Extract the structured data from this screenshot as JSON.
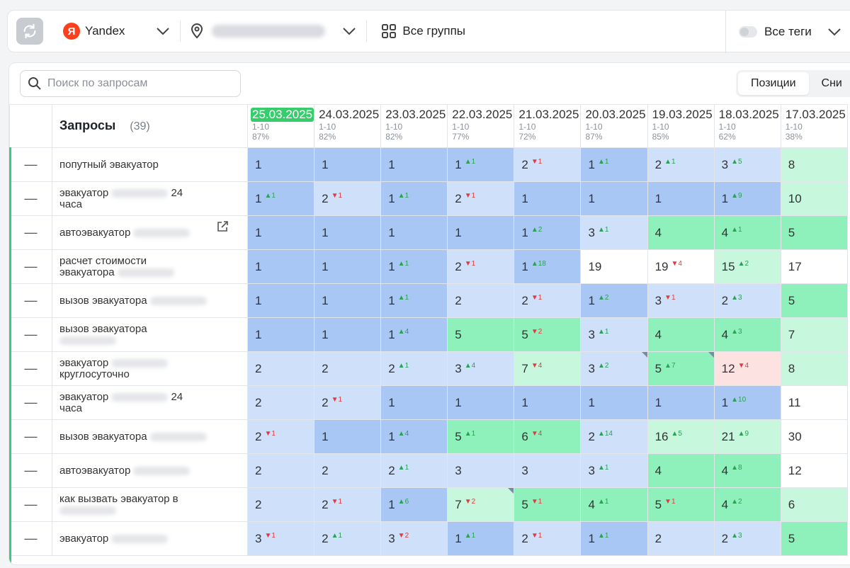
{
  "toolbar": {
    "engine_label": "Yandex",
    "engine_logo_letter": "Я",
    "groups_label": "Все группы",
    "tags_label": "Все теги"
  },
  "search": {
    "placeholder": "Поиск по запросам"
  },
  "view_tabs": [
    {
      "label": "Позиции",
      "active": true
    },
    {
      "label": "Сни"
    }
  ],
  "table": {
    "header_label": "Запросы",
    "header_count": "(39)",
    "dates": [
      {
        "date": "25.03.2025",
        "range": "1-10",
        "pct": "87%",
        "active": true
      },
      {
        "date": "24.03.2025",
        "range": "1-10",
        "pct": "82%"
      },
      {
        "date": "23.03.2025",
        "range": "1-10",
        "pct": "82%"
      },
      {
        "date": "22.03.2025",
        "range": "1-10",
        "pct": "77%"
      },
      {
        "date": "21.03.2025",
        "range": "1-10",
        "pct": "72%"
      },
      {
        "date": "20.03.2025",
        "range": "1-10",
        "pct": "87%"
      },
      {
        "date": "19.03.2025",
        "range": "1-10",
        "pct": "85%"
      },
      {
        "date": "18.03.2025",
        "range": "1-10",
        "pct": "62%"
      },
      {
        "date": "17.03.2025",
        "range": "1-10",
        "pct": "38%"
      }
    ],
    "rows": [
      {
        "dash": "—",
        "q1": "попутный эвакуатор",
        "blur1": false,
        "q2": "",
        "blur2": false,
        "cells": [
          {
            "v": "1",
            "bg": "blue"
          },
          {
            "v": "1",
            "bg": "blue"
          },
          {
            "v": "1",
            "bg": "blue"
          },
          {
            "v": "1",
            "d": "+1",
            "bg": "blue"
          },
          {
            "v": "2",
            "d": "-1",
            "bg": "lblue"
          },
          {
            "v": "1",
            "d": "+1",
            "bg": "blue"
          },
          {
            "v": "2",
            "d": "+1",
            "bg": "lblue"
          },
          {
            "v": "3",
            "d": "+5",
            "bg": "lblue"
          },
          {
            "v": "8",
            "bg": "lgreen"
          }
        ]
      },
      {
        "dash": "—",
        "q1": "эвакуатор",
        "blur1": true,
        "tail1": "24",
        "q2": "часа",
        "blur2": false,
        "cells": [
          {
            "v": "1",
            "d": "+1",
            "bg": "blue"
          },
          {
            "v": "2",
            "d": "-1",
            "bg": "lblue"
          },
          {
            "v": "1",
            "d": "+1",
            "bg": "blue"
          },
          {
            "v": "2",
            "d": "-1",
            "bg": "lblue"
          },
          {
            "v": "1",
            "bg": "blue"
          },
          {
            "v": "1",
            "bg": "blue"
          },
          {
            "v": "1",
            "bg": "blue"
          },
          {
            "v": "1",
            "d": "+9",
            "bg": "blue"
          },
          {
            "v": "10",
            "bg": "lgreen"
          }
        ]
      },
      {
        "dash": "—",
        "q1": "автоэвакуатор",
        "blur1": true,
        "q2": "",
        "blur2": false,
        "ext": true,
        "cells": [
          {
            "v": "1",
            "bg": "blue"
          },
          {
            "v": "1",
            "bg": "blue"
          },
          {
            "v": "1",
            "bg": "blue"
          },
          {
            "v": "1",
            "bg": "blue"
          },
          {
            "v": "1",
            "d": "+2",
            "bg": "blue"
          },
          {
            "v": "3",
            "d": "+1",
            "bg": "lblue"
          },
          {
            "v": "4",
            "bg": "green"
          },
          {
            "v": "4",
            "d": "+1",
            "bg": "green"
          },
          {
            "v": "5",
            "bg": "green"
          }
        ]
      },
      {
        "dash": "—",
        "q1": "расчет стоимости",
        "blur1": false,
        "q2": "эвакуатора",
        "blur2": true,
        "cells": [
          {
            "v": "1",
            "bg": "blue"
          },
          {
            "v": "1",
            "bg": "blue"
          },
          {
            "v": "1",
            "d": "+1",
            "bg": "blue"
          },
          {
            "v": "2",
            "d": "-1",
            "bg": "lblue"
          },
          {
            "v": "1",
            "d": "+18",
            "bg": "blue"
          },
          {
            "v": "19",
            "bg": "white"
          },
          {
            "v": "19",
            "d": "-4",
            "bg": "white"
          },
          {
            "v": "15",
            "d": "+2",
            "bg": "lgreen"
          },
          {
            "v": "17",
            "bg": "white"
          }
        ]
      },
      {
        "dash": "—",
        "q1": "вызов эвакуатора",
        "blur1": true,
        "q2": "",
        "blur2": false,
        "cells": [
          {
            "v": "1",
            "bg": "blue"
          },
          {
            "v": "1",
            "bg": "blue"
          },
          {
            "v": "1",
            "d": "+1",
            "bg": "blue"
          },
          {
            "v": "2",
            "bg": "lblue"
          },
          {
            "v": "2",
            "d": "-1",
            "bg": "lblue"
          },
          {
            "v": "1",
            "d": "+2",
            "bg": "blue"
          },
          {
            "v": "3",
            "d": "-1",
            "bg": "lblue"
          },
          {
            "v": "2",
            "d": "+3",
            "bg": "lblue"
          },
          {
            "v": "5",
            "bg": "green"
          }
        ]
      },
      {
        "dash": "—",
        "q1": "вызов эвакуатора",
        "blur1": false,
        "q2": "",
        "blur2": true,
        "cells": [
          {
            "v": "1",
            "bg": "blue"
          },
          {
            "v": "1",
            "bg": "blue"
          },
          {
            "v": "1",
            "d": "+4",
            "bg": "blue"
          },
          {
            "v": "5",
            "bg": "green"
          },
          {
            "v": "5",
            "d": "-2",
            "bg": "green"
          },
          {
            "v": "3",
            "d": "+1",
            "bg": "lblue"
          },
          {
            "v": "4",
            "bg": "green"
          },
          {
            "v": "4",
            "d": "+3",
            "bg": "green"
          },
          {
            "v": "7",
            "bg": "lgreen"
          }
        ]
      },
      {
        "dash": "—",
        "q1": "эвакуатор",
        "blur1": true,
        "q2": "круглосуточно",
        "blur2": false,
        "cells": [
          {
            "v": "2",
            "bg": "lblue"
          },
          {
            "v": "2",
            "bg": "lblue"
          },
          {
            "v": "2",
            "d": "+1",
            "bg": "lblue"
          },
          {
            "v": "3",
            "d": "+4",
            "bg": "lblue"
          },
          {
            "v": "7",
            "d": "-4",
            "bg": "lgreen"
          },
          {
            "v": "3",
            "d": "+2",
            "bg": "lblue",
            "tri": true
          },
          {
            "v": "5",
            "d": "+7",
            "bg": "green",
            "tri": true
          },
          {
            "v": "12",
            "d": "-4",
            "bg": "pink"
          },
          {
            "v": "8",
            "bg": "lgreen"
          }
        ]
      },
      {
        "dash": "—",
        "q1": "эвакуатор",
        "blur1": true,
        "tail1": "24",
        "q2": "часа",
        "blur2": false,
        "cells": [
          {
            "v": "2",
            "bg": "lblue"
          },
          {
            "v": "2",
            "d": "-1",
            "bg": "lblue"
          },
          {
            "v": "1",
            "bg": "blue"
          },
          {
            "v": "1",
            "bg": "blue"
          },
          {
            "v": "1",
            "bg": "blue"
          },
          {
            "v": "1",
            "bg": "blue"
          },
          {
            "v": "1",
            "bg": "blue"
          },
          {
            "v": "1",
            "d": "+10",
            "bg": "blue"
          },
          {
            "v": "11",
            "bg": "white"
          }
        ]
      },
      {
        "dash": "—",
        "q1": "вызов эвакуатора",
        "blur1": true,
        "q2": "",
        "blur2": false,
        "cells": [
          {
            "v": "2",
            "d": "-1",
            "bg": "lblue"
          },
          {
            "v": "1",
            "bg": "blue"
          },
          {
            "v": "1",
            "d": "+4",
            "bg": "blue"
          },
          {
            "v": "5",
            "d": "+1",
            "bg": "green"
          },
          {
            "v": "6",
            "d": "-4",
            "bg": "green"
          },
          {
            "v": "2",
            "d": "+14",
            "bg": "lblue"
          },
          {
            "v": "16",
            "d": "+5",
            "bg": "lgreen"
          },
          {
            "v": "21",
            "d": "+9",
            "bg": "lgreen"
          },
          {
            "v": "30",
            "bg": "white"
          }
        ]
      },
      {
        "dash": "—",
        "q1": "автоэвакуатор",
        "blur1": true,
        "q2": "",
        "blur2": false,
        "cells": [
          {
            "v": "2",
            "bg": "lblue"
          },
          {
            "v": "2",
            "bg": "lblue"
          },
          {
            "v": "2",
            "d": "+1",
            "bg": "lblue"
          },
          {
            "v": "3",
            "bg": "lblue"
          },
          {
            "v": "3",
            "bg": "lblue"
          },
          {
            "v": "3",
            "d": "+1",
            "bg": "lblue"
          },
          {
            "v": "4",
            "bg": "green"
          },
          {
            "v": "4",
            "d": "+8",
            "bg": "green"
          },
          {
            "v": "12",
            "bg": "white"
          }
        ]
      },
      {
        "dash": "—",
        "q1": "как вызвать эвакуатор в",
        "blur1": false,
        "q2": "",
        "blur2": true,
        "cells": [
          {
            "v": "2",
            "bg": "lblue"
          },
          {
            "v": "2",
            "d": "-1",
            "bg": "lblue"
          },
          {
            "v": "1",
            "d": "+6",
            "bg": "blue"
          },
          {
            "v": "7",
            "d": "-2",
            "bg": "lgreen",
            "tri": true
          },
          {
            "v": "5",
            "d": "-1",
            "bg": "green"
          },
          {
            "v": "4",
            "d": "+1",
            "bg": "green"
          },
          {
            "v": "5",
            "d": "-1",
            "bg": "green"
          },
          {
            "v": "4",
            "d": "+2",
            "bg": "green"
          },
          {
            "v": "6",
            "bg": "lgreen"
          }
        ]
      },
      {
        "dash": "—",
        "q1": "эвакуатор",
        "blur1": true,
        "q2": "",
        "blur2": false,
        "cells": [
          {
            "v": "3",
            "d": "-1",
            "bg": "lblue"
          },
          {
            "v": "2",
            "d": "+1",
            "bg": "lblue"
          },
          {
            "v": "3",
            "d": "-2",
            "bg": "lblue"
          },
          {
            "v": "1",
            "d": "+1",
            "bg": "blue"
          },
          {
            "v": "2",
            "d": "-1",
            "bg": "lblue"
          },
          {
            "v": "1",
            "d": "+1",
            "bg": "blue"
          },
          {
            "v": "2",
            "bg": "lblue"
          },
          {
            "v": "2",
            "d": "+3",
            "bg": "lblue"
          },
          {
            "v": "5",
            "bg": "green"
          }
        ]
      }
    ]
  }
}
